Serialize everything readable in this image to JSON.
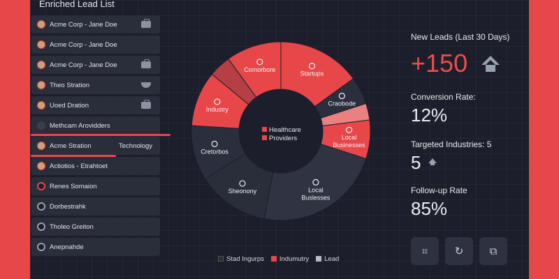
{
  "panel_title": "Enriched Lead List",
  "leads": [
    {
      "label": "Acme Corp - Jane Doe",
      "icon": "briefcase-icon"
    },
    {
      "label": "Acme Corp - Jane Doe",
      "icon": ""
    },
    {
      "label": "Acme Corp - Jane Doe",
      "icon": "briefcase-icon"
    },
    {
      "label": "Theo Stration",
      "icon": "bowl-icon"
    },
    {
      "label": "Uoed Dration",
      "icon": "briefcase-icon"
    },
    {
      "label": "Methcam Arovidders",
      "icon": ""
    },
    {
      "label": "Acme Stration",
      "icon": ""
    },
    {
      "label": "Actiotios - Etrahtoet",
      "icon": ""
    },
    {
      "label": "Renes Somaion",
      "icon": ""
    },
    {
      "label": "Dorbestrahk",
      "icon": ""
    },
    {
      "label": "Tholeo Greiton",
      "icon": ""
    },
    {
      "label": "Anepnahde",
      "icon": ""
    }
  ],
  "tech_label": "Technology",
  "chart_data": {
    "type": "pie",
    "variant": "donut",
    "slices": [
      {
        "label": "Startups",
        "value": 15,
        "color": "#e8474a"
      },
      {
        "label": "Craobode",
        "value": 5,
        "color": "#2b2f3d"
      },
      {
        "label": "",
        "value": 3,
        "color": "#ea8080"
      },
      {
        "label": "Local Businesses",
        "value": 7,
        "color": "#e8474a"
      },
      {
        "label": "Local Buslesses",
        "value": 23,
        "color": "#2f3342"
      },
      {
        "label": "Sheonony",
        "value": 13,
        "color": "#2a2e3b"
      },
      {
        "label": "Cretorbos",
        "value": 10,
        "color": "#2b2f3d"
      },
      {
        "label": "Industry",
        "value": 10,
        "color": "#e8474a"
      },
      {
        "label": "",
        "value": 4,
        "color": "#b53f44"
      },
      {
        "label": "Comorbore",
        "value": 10,
        "color": "#e8474a"
      }
    ],
    "center_legend": [
      "Healthcare",
      "Providers"
    ],
    "legend": [
      {
        "label": "Stad Ingurps",
        "color": "#2a2e3b"
      },
      {
        "label": "Indumutry",
        "color": "#e8474a"
      },
      {
        "label": "Lead",
        "color": "#b8bcc6"
      }
    ]
  },
  "stats": {
    "new_leads_label": "New Leads (Last 30 Days)",
    "new_leads_value": "+150",
    "conversion_label": "Conversion Rate:",
    "conversion_value": "12%",
    "industries_label": "Targeted Industries: 5",
    "industries_value": "5",
    "followup_label": "Follow-up Rate",
    "followup_value": "85%"
  },
  "buttons": [
    "scan-icon",
    "refresh-icon",
    "puzzle-icon"
  ]
}
